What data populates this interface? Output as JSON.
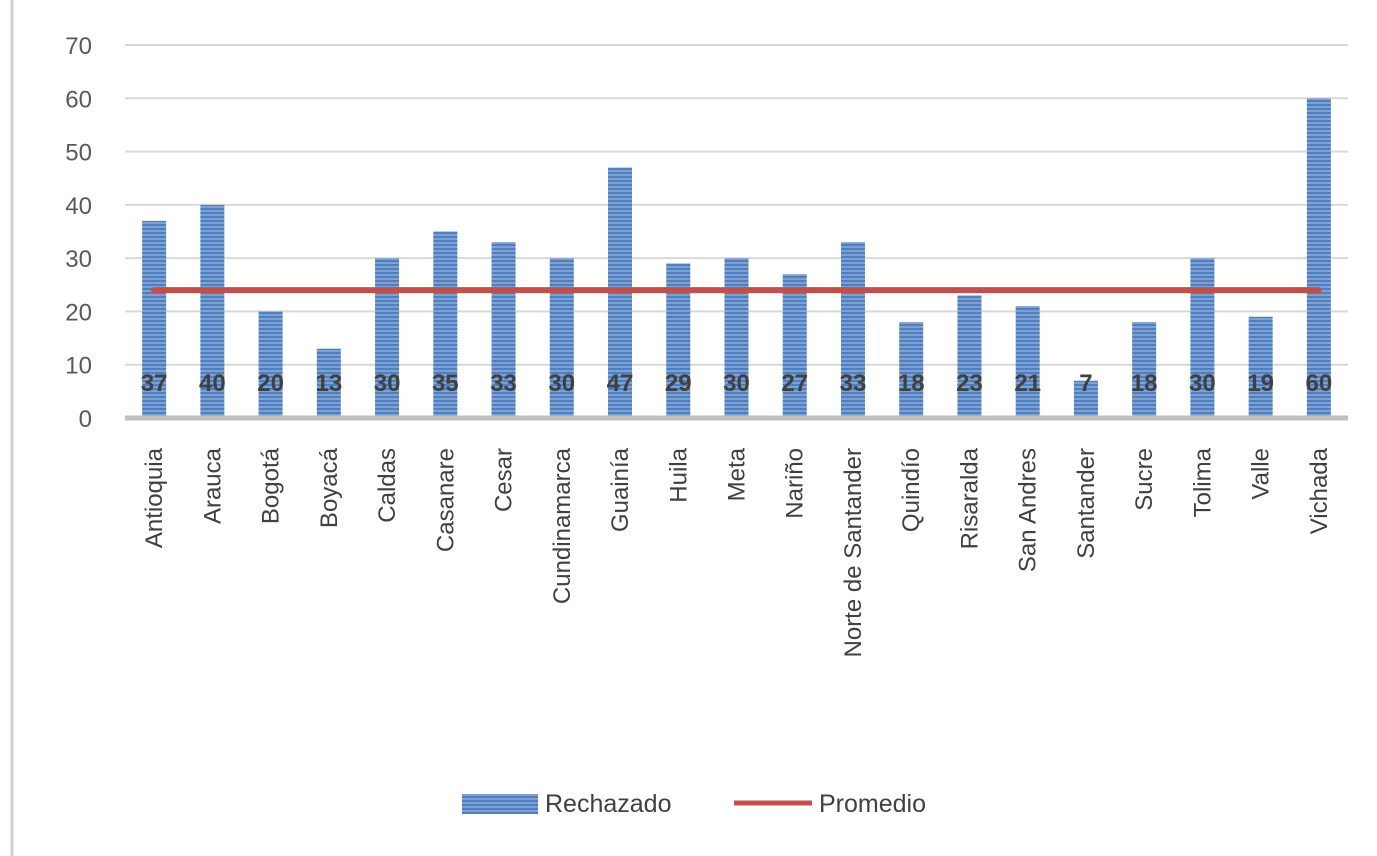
{
  "chart_data": {
    "type": "bar",
    "categories": [
      "Antioquia",
      "Arauca",
      "Bogotá",
      "Boyacá",
      "Caldas",
      "Casanare",
      "Cesar",
      "Cundinamarca",
      "Guainía",
      "Huila",
      "Meta",
      "Nariño",
      "Norte de Santander",
      "Quindío",
      "Risaralda",
      "San Andres",
      "Santander",
      "Sucre",
      "Tolima",
      "Valle",
      "Vichada"
    ],
    "series": [
      {
        "name": "Rechazado",
        "type": "bar",
        "values": [
          37,
          40,
          20,
          13,
          30,
          35,
          33,
          30,
          47,
          29,
          30,
          27,
          33,
          18,
          23,
          21,
          7,
          18,
          30,
          19,
          60
        ],
        "labels": [
          "37",
          "40",
          "20",
          "13",
          "30",
          "35",
          "33",
          "30",
          "47",
          "29",
          "30",
          "27",
          "33",
          "18",
          "23",
          "21",
          "7",
          "18",
          "30",
          "19",
          "60"
        ],
        "color": "#4F81BD"
      },
      {
        "name": "Promedio",
        "type": "line",
        "value": 24,
        "color": "#C0504D"
      }
    ],
    "ylim": [
      0,
      70
    ],
    "yticks": [
      0,
      10,
      20,
      30,
      40,
      50,
      60,
      70
    ],
    "ytick_labels": [
      "0",
      "10",
      "20",
      "30",
      "40",
      "50",
      "60",
      "70"
    ],
    "grid": true,
    "legend_position": "bottom"
  }
}
